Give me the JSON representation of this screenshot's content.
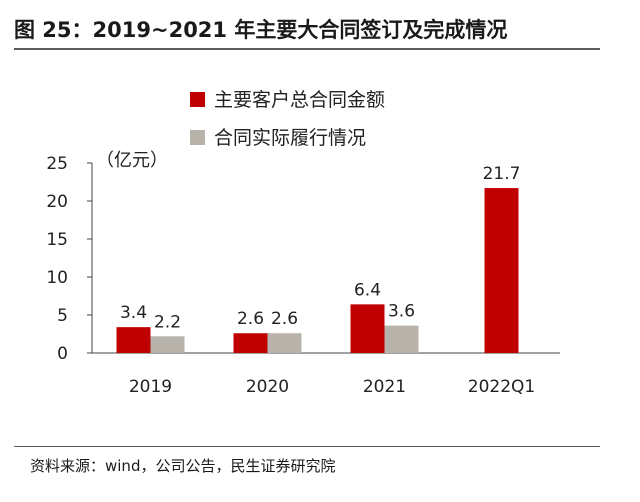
{
  "figure": {
    "title": "图 25：2019~2021 年主要大合同签订及完成情况",
    "source": "资料来源：wind，公司公告，民生证券研究院"
  },
  "chart_data": {
    "type": "bar",
    "categories": [
      "2019",
      "2020",
      "2021",
      "2022Q1"
    ],
    "series": [
      {
        "name": "主要客户总合同金额",
        "color": "#c00000",
        "values": [
          3.4,
          2.6,
          6.4,
          21.7
        ]
      },
      {
        "name": "合同实际履行情况",
        "color": "#b8b3aa",
        "values": [
          2.2,
          2.6,
          3.6,
          null
        ]
      }
    ],
    "value_labels": [
      [
        "3.4",
        "2.6",
        "6.4",
        "21.7"
      ],
      [
        "2.2",
        "2.6",
        "3.6",
        null
      ]
    ],
    "unit_label": "（亿元）",
    "ylim": [
      0,
      25
    ],
    "yticks": [
      0,
      5,
      10,
      15,
      20,
      25
    ],
    "grid": false,
    "legend_position": "top"
  }
}
